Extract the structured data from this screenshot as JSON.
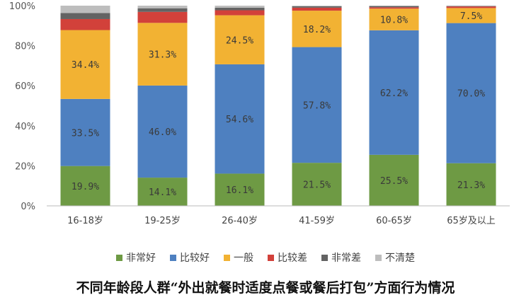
{
  "caption": "不同年龄段人群“外出就餐时适度点餐或餐后打包”方面行为情况",
  "chart_data": {
    "type": "bar",
    "stacked": true,
    "categories": [
      "16-18岁",
      "19-25岁",
      "26-40岁",
      "41-59岁",
      "60-65岁",
      "65岁及以上"
    ],
    "y_ticks": [
      "0%",
      "20%",
      "40%",
      "60%",
      "80%",
      "100%"
    ],
    "ylim": [
      0,
      100
    ],
    "legend_position": "bottom",
    "grid": false,
    "series": [
      {
        "name": "非常好",
        "color": "#6e9a44",
        "values": [
          19.9,
          14.1,
          16.1,
          21.5,
          25.5,
          21.3
        ],
        "labels": [
          "19.9%",
          "14.1%",
          "16.1%",
          "21.5%",
          "25.5%",
          "21.3%"
        ]
      },
      {
        "name": "比较好",
        "color": "#4e80c0",
        "values": [
          33.5,
          46.0,
          54.6,
          57.8,
          62.2,
          70.0
        ],
        "labels": [
          "33.5%",
          "46.0%",
          "54.6%",
          "57.8%",
          "62.2%",
          "70.0%"
        ]
      },
      {
        "name": "一般",
        "color": "#f2b233",
        "values": [
          34.4,
          31.3,
          24.5,
          18.2,
          10.8,
          7.5
        ],
        "labels": [
          "34.4%",
          "31.3%",
          "24.5%",
          "18.2%",
          "10.8%",
          "7.5%"
        ]
      },
      {
        "name": "比较差",
        "color": "#d2413a",
        "values": [
          5.5,
          5.5,
          2.5,
          1.5,
          0.7,
          0.8
        ],
        "labels": []
      },
      {
        "name": "非常差",
        "color": "#636363",
        "values": [
          3.0,
          1.8,
          1.3,
          0.7,
          0.6,
          0.2
        ],
        "labels": []
      },
      {
        "name": "不清楚",
        "color": "#bdbdbd",
        "values": [
          3.7,
          1.3,
          1.0,
          0.3,
          0.2,
          0.2
        ],
        "labels": []
      }
    ]
  }
}
